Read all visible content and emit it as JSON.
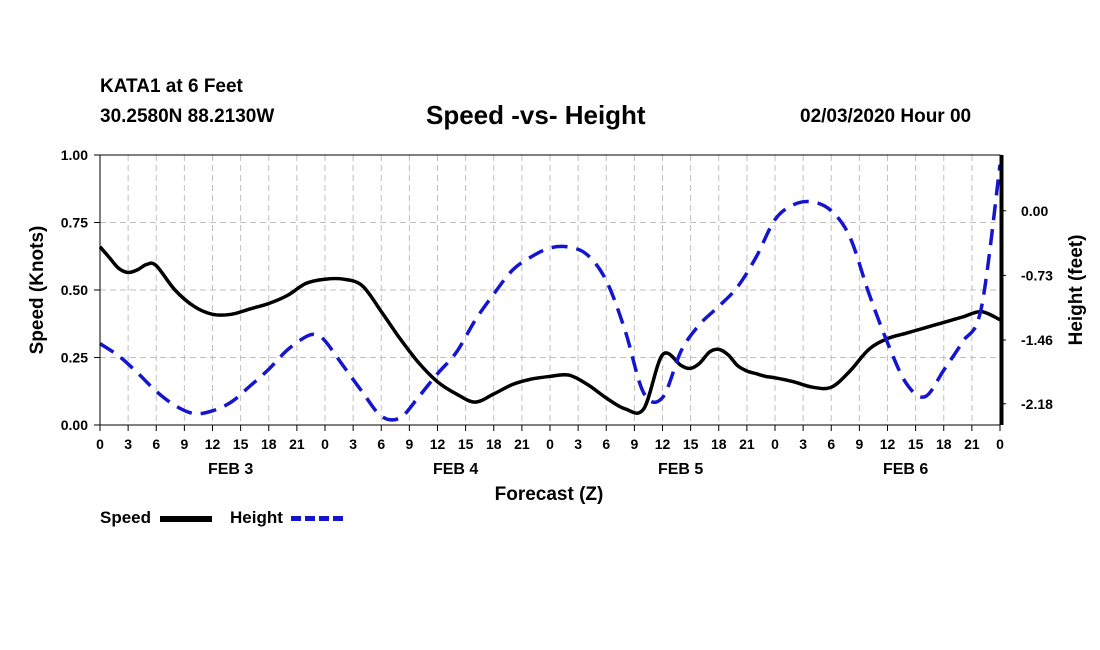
{
  "header": {
    "station": "KATA1 at 6 Feet",
    "coords": "30.2580N 88.2130W",
    "title": "Speed -vs- Height",
    "date": "02/03/2020 Hour 00"
  },
  "legend": {
    "speed_label": "Speed",
    "height_label": "Height"
  },
  "colors": {
    "speed": "#000000",
    "height": "#1515d0",
    "grid": "#bfbfbf"
  },
  "chart_data": {
    "type": "line",
    "title": "Speed -vs- Height",
    "xlabel": "Forecast (Z)",
    "ylabel_left": "Speed (Knots)",
    "ylabel_right": "Height (feet)",
    "x_ticks": [
      "0",
      "3",
      "6",
      "9",
      "12",
      "15",
      "18",
      "21",
      "0",
      "3",
      "6",
      "9",
      "12",
      "15",
      "18",
      "21",
      "0",
      "3",
      "6",
      "9",
      "12",
      "15",
      "18",
      "21",
      "0",
      "3",
      "6",
      "9",
      "12",
      "15",
      "18",
      "21",
      "0"
    ],
    "day_labels": [
      {
        "label": "FEB 3",
        "hour": 15
      },
      {
        "label": "FEB 4",
        "hour": 39
      },
      {
        "label": "FEB 5",
        "hour": 63
      },
      {
        "label": "FEB 6",
        "hour": 87
      }
    ],
    "xlim": [
      0,
      96
    ],
    "ylim_left": [
      0,
      1
    ],
    "left_ticks": [
      "0.00",
      "0.25",
      "0.50",
      "0.75",
      "1.00"
    ],
    "left_tick_values": [
      0,
      0.25,
      0.5,
      0.75,
      1.0
    ],
    "ylim_right": [
      -2.42,
      0.63
    ],
    "right_ticks": [
      "0.00",
      "-0.73",
      "-1.46",
      "-2.18"
    ],
    "right_tick_values": [
      0,
      -0.73,
      -1.46,
      -2.18
    ],
    "grid": true,
    "series": [
      {
        "name": "Speed",
        "axis": "left",
        "style": "solid",
        "x": [
          0,
          1,
          2,
          3,
          4,
          5,
          6,
          8,
          10,
          12,
          14,
          16,
          18,
          20,
          22,
          24,
          26,
          28,
          30,
          31,
          32,
          34,
          36,
          38,
          40,
          42,
          44,
          46,
          48,
          50,
          52,
          54,
          56,
          58,
          60,
          62,
          63,
          64,
          65,
          66,
          67,
          68,
          69,
          70,
          71,
          72,
          74,
          76,
          78,
          80,
          82,
          84,
          86,
          88,
          90,
          92,
          94,
          96
        ],
        "values": [
          0.66,
          0.62,
          0.58,
          0.565,
          0.575,
          0.595,
          0.59,
          0.5,
          0.44,
          0.41,
          0.41,
          0.43,
          0.45,
          0.48,
          0.525,
          0.54,
          0.54,
          0.515,
          0.42,
          0.37,
          0.32,
          0.23,
          0.16,
          0.115,
          0.085,
          0.115,
          0.15,
          0.17,
          0.18,
          0.185,
          0.15,
          0.1,
          0.06,
          0.06,
          0.26,
          0.22,
          0.21,
          0.23,
          0.27,
          0.28,
          0.26,
          0.22,
          0.2,
          0.19,
          0.18,
          0.175,
          0.16,
          0.14,
          0.14,
          0.2,
          0.28,
          0.32,
          0.34,
          0.36,
          0.38,
          0.4,
          0.42,
          0.39
        ]
      },
      {
        "name": "Height",
        "axis": "right",
        "style": "dashed",
        "x": [
          0,
          2,
          4,
          6,
          8,
          10,
          12,
          14,
          16,
          18,
          20,
          22,
          23,
          24,
          26,
          28,
          30,
          32,
          34,
          36,
          38,
          40,
          42,
          44,
          46,
          48,
          50,
          52,
          54,
          56,
          58,
          60,
          62,
          64,
          66,
          68,
          70,
          72,
          74,
          76,
          78,
          80,
          82,
          84,
          86,
          88,
          90,
          92,
          94,
          96
        ],
        "values": [
          -1.5,
          -1.64,
          -1.83,
          -2.04,
          -2.2,
          -2.29,
          -2.26,
          -2.16,
          -1.98,
          -1.79,
          -1.57,
          -1.42,
          -1.4,
          -1.47,
          -1.76,
          -2.05,
          -2.32,
          -2.34,
          -2.1,
          -1.84,
          -1.6,
          -1.24,
          -0.94,
          -0.67,
          -0.52,
          -0.42,
          -0.41,
          -0.5,
          -0.79,
          -1.35,
          -2.06,
          -2.11,
          -1.58,
          -1.28,
          -1.08,
          -0.86,
          -0.52,
          -0.1,
          0.07,
          0.1,
          0.0,
          -0.3,
          -0.93,
          -1.49,
          -1.95,
          -2.1,
          -1.8,
          -1.48,
          -1.1,
          0.52
        ]
      }
    ]
  }
}
